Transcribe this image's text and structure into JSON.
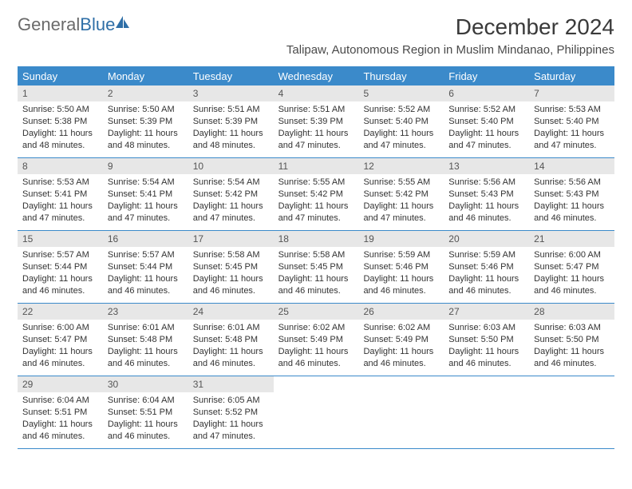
{
  "logo": {
    "text_gray": "General",
    "text_blue": "Blue"
  },
  "title": "December 2024",
  "location": "Talipaw, Autonomous Region in Muslim Mindanao, Philippines",
  "colors": {
    "header_bar": "#3b8aca",
    "day_num_bg": "#e7e7e7",
    "week_divider": "#3b8aca",
    "text": "#333333",
    "logo_gray": "#6a6a6a",
    "logo_blue": "#2f6fa7"
  },
  "day_names": [
    "Sunday",
    "Monday",
    "Tuesday",
    "Wednesday",
    "Thursday",
    "Friday",
    "Saturday"
  ],
  "weeks": [
    [
      {
        "num": "1",
        "sunrise": "Sunrise: 5:50 AM",
        "sunset": "Sunset: 5:38 PM",
        "daylight1": "Daylight: 11 hours",
        "daylight2": "and 48 minutes."
      },
      {
        "num": "2",
        "sunrise": "Sunrise: 5:50 AM",
        "sunset": "Sunset: 5:39 PM",
        "daylight1": "Daylight: 11 hours",
        "daylight2": "and 48 minutes."
      },
      {
        "num": "3",
        "sunrise": "Sunrise: 5:51 AM",
        "sunset": "Sunset: 5:39 PM",
        "daylight1": "Daylight: 11 hours",
        "daylight2": "and 48 minutes."
      },
      {
        "num": "4",
        "sunrise": "Sunrise: 5:51 AM",
        "sunset": "Sunset: 5:39 PM",
        "daylight1": "Daylight: 11 hours",
        "daylight2": "and 47 minutes."
      },
      {
        "num": "5",
        "sunrise": "Sunrise: 5:52 AM",
        "sunset": "Sunset: 5:40 PM",
        "daylight1": "Daylight: 11 hours",
        "daylight2": "and 47 minutes."
      },
      {
        "num": "6",
        "sunrise": "Sunrise: 5:52 AM",
        "sunset": "Sunset: 5:40 PM",
        "daylight1": "Daylight: 11 hours",
        "daylight2": "and 47 minutes."
      },
      {
        "num": "7",
        "sunrise": "Sunrise: 5:53 AM",
        "sunset": "Sunset: 5:40 PM",
        "daylight1": "Daylight: 11 hours",
        "daylight2": "and 47 minutes."
      }
    ],
    [
      {
        "num": "8",
        "sunrise": "Sunrise: 5:53 AM",
        "sunset": "Sunset: 5:41 PM",
        "daylight1": "Daylight: 11 hours",
        "daylight2": "and 47 minutes."
      },
      {
        "num": "9",
        "sunrise": "Sunrise: 5:54 AM",
        "sunset": "Sunset: 5:41 PM",
        "daylight1": "Daylight: 11 hours",
        "daylight2": "and 47 minutes."
      },
      {
        "num": "10",
        "sunrise": "Sunrise: 5:54 AM",
        "sunset": "Sunset: 5:42 PM",
        "daylight1": "Daylight: 11 hours",
        "daylight2": "and 47 minutes."
      },
      {
        "num": "11",
        "sunrise": "Sunrise: 5:55 AM",
        "sunset": "Sunset: 5:42 PM",
        "daylight1": "Daylight: 11 hours",
        "daylight2": "and 47 minutes."
      },
      {
        "num": "12",
        "sunrise": "Sunrise: 5:55 AM",
        "sunset": "Sunset: 5:42 PM",
        "daylight1": "Daylight: 11 hours",
        "daylight2": "and 47 minutes."
      },
      {
        "num": "13",
        "sunrise": "Sunrise: 5:56 AM",
        "sunset": "Sunset: 5:43 PM",
        "daylight1": "Daylight: 11 hours",
        "daylight2": "and 46 minutes."
      },
      {
        "num": "14",
        "sunrise": "Sunrise: 5:56 AM",
        "sunset": "Sunset: 5:43 PM",
        "daylight1": "Daylight: 11 hours",
        "daylight2": "and 46 minutes."
      }
    ],
    [
      {
        "num": "15",
        "sunrise": "Sunrise: 5:57 AM",
        "sunset": "Sunset: 5:44 PM",
        "daylight1": "Daylight: 11 hours",
        "daylight2": "and 46 minutes."
      },
      {
        "num": "16",
        "sunrise": "Sunrise: 5:57 AM",
        "sunset": "Sunset: 5:44 PM",
        "daylight1": "Daylight: 11 hours",
        "daylight2": "and 46 minutes."
      },
      {
        "num": "17",
        "sunrise": "Sunrise: 5:58 AM",
        "sunset": "Sunset: 5:45 PM",
        "daylight1": "Daylight: 11 hours",
        "daylight2": "and 46 minutes."
      },
      {
        "num": "18",
        "sunrise": "Sunrise: 5:58 AM",
        "sunset": "Sunset: 5:45 PM",
        "daylight1": "Daylight: 11 hours",
        "daylight2": "and 46 minutes."
      },
      {
        "num": "19",
        "sunrise": "Sunrise: 5:59 AM",
        "sunset": "Sunset: 5:46 PM",
        "daylight1": "Daylight: 11 hours",
        "daylight2": "and 46 minutes."
      },
      {
        "num": "20",
        "sunrise": "Sunrise: 5:59 AM",
        "sunset": "Sunset: 5:46 PM",
        "daylight1": "Daylight: 11 hours",
        "daylight2": "and 46 minutes."
      },
      {
        "num": "21",
        "sunrise": "Sunrise: 6:00 AM",
        "sunset": "Sunset: 5:47 PM",
        "daylight1": "Daylight: 11 hours",
        "daylight2": "and 46 minutes."
      }
    ],
    [
      {
        "num": "22",
        "sunrise": "Sunrise: 6:00 AM",
        "sunset": "Sunset: 5:47 PM",
        "daylight1": "Daylight: 11 hours",
        "daylight2": "and 46 minutes."
      },
      {
        "num": "23",
        "sunrise": "Sunrise: 6:01 AM",
        "sunset": "Sunset: 5:48 PM",
        "daylight1": "Daylight: 11 hours",
        "daylight2": "and 46 minutes."
      },
      {
        "num": "24",
        "sunrise": "Sunrise: 6:01 AM",
        "sunset": "Sunset: 5:48 PM",
        "daylight1": "Daylight: 11 hours",
        "daylight2": "and 46 minutes."
      },
      {
        "num": "25",
        "sunrise": "Sunrise: 6:02 AM",
        "sunset": "Sunset: 5:49 PM",
        "daylight1": "Daylight: 11 hours",
        "daylight2": "and 46 minutes."
      },
      {
        "num": "26",
        "sunrise": "Sunrise: 6:02 AM",
        "sunset": "Sunset: 5:49 PM",
        "daylight1": "Daylight: 11 hours",
        "daylight2": "and 46 minutes."
      },
      {
        "num": "27",
        "sunrise": "Sunrise: 6:03 AM",
        "sunset": "Sunset: 5:50 PM",
        "daylight1": "Daylight: 11 hours",
        "daylight2": "and 46 minutes."
      },
      {
        "num": "28",
        "sunrise": "Sunrise: 6:03 AM",
        "sunset": "Sunset: 5:50 PM",
        "daylight1": "Daylight: 11 hours",
        "daylight2": "and 46 minutes."
      }
    ],
    [
      {
        "num": "29",
        "sunrise": "Sunrise: 6:04 AM",
        "sunset": "Sunset: 5:51 PM",
        "daylight1": "Daylight: 11 hours",
        "daylight2": "and 46 minutes."
      },
      {
        "num": "30",
        "sunrise": "Sunrise: 6:04 AM",
        "sunset": "Sunset: 5:51 PM",
        "daylight1": "Daylight: 11 hours",
        "daylight2": "and 46 minutes."
      },
      {
        "num": "31",
        "sunrise": "Sunrise: 6:05 AM",
        "sunset": "Sunset: 5:52 PM",
        "daylight1": "Daylight: 11 hours",
        "daylight2": "and 47 minutes."
      },
      {
        "empty": true,
        "num": "",
        "sunrise": "",
        "sunset": "",
        "daylight1": "",
        "daylight2": ""
      },
      {
        "empty": true,
        "num": "",
        "sunrise": "",
        "sunset": "",
        "daylight1": "",
        "daylight2": ""
      },
      {
        "empty": true,
        "num": "",
        "sunrise": "",
        "sunset": "",
        "daylight1": "",
        "daylight2": ""
      },
      {
        "empty": true,
        "num": "",
        "sunrise": "",
        "sunset": "",
        "daylight1": "",
        "daylight2": ""
      }
    ]
  ]
}
